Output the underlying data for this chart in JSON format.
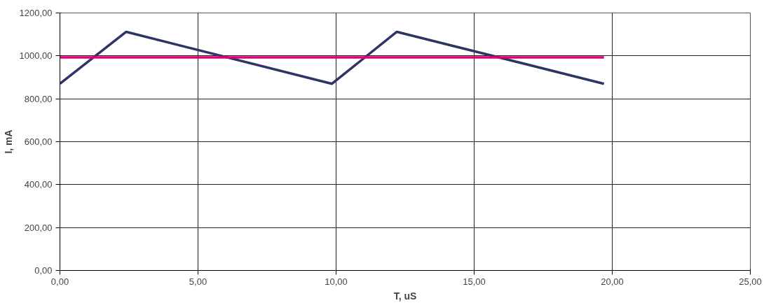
{
  "chart_data": {
    "type": "line",
    "xlabel": "T, uS",
    "ylabel": "I, mA",
    "xlim": [
      0,
      25
    ],
    "ylim": [
      0,
      1200
    ],
    "xticks": [
      {
        "value": 0,
        "label": "0,00"
      },
      {
        "value": 5,
        "label": "5,00"
      },
      {
        "value": 10,
        "label": "10,00"
      },
      {
        "value": 15,
        "label": "15,00"
      },
      {
        "value": 20,
        "label": "20,00"
      },
      {
        "value": 25,
        "label": "25,00"
      }
    ],
    "yticks": [
      {
        "value": 0,
        "label": "0,00"
      },
      {
        "value": 200,
        "label": "200,00"
      },
      {
        "value": 400,
        "label": "400,00"
      },
      {
        "value": 600,
        "label": "600,00"
      },
      {
        "value": 800,
        "label": "800,00"
      },
      {
        "value": 1000,
        "label": "1000,00"
      },
      {
        "value": 1200,
        "label": "1200,00"
      }
    ],
    "grid": true,
    "line_style": "solid",
    "series": [
      {
        "color": "#2e3566",
        "x": [
          0,
          2.4,
          9.85,
          12.2,
          19.7
        ],
        "values": [
          870,
          1112,
          870,
          1112,
          870
        ]
      },
      {
        "color": "#e0007a",
        "x": [
          0,
          19.7
        ],
        "values": [
          993,
          993
        ]
      }
    ]
  }
}
